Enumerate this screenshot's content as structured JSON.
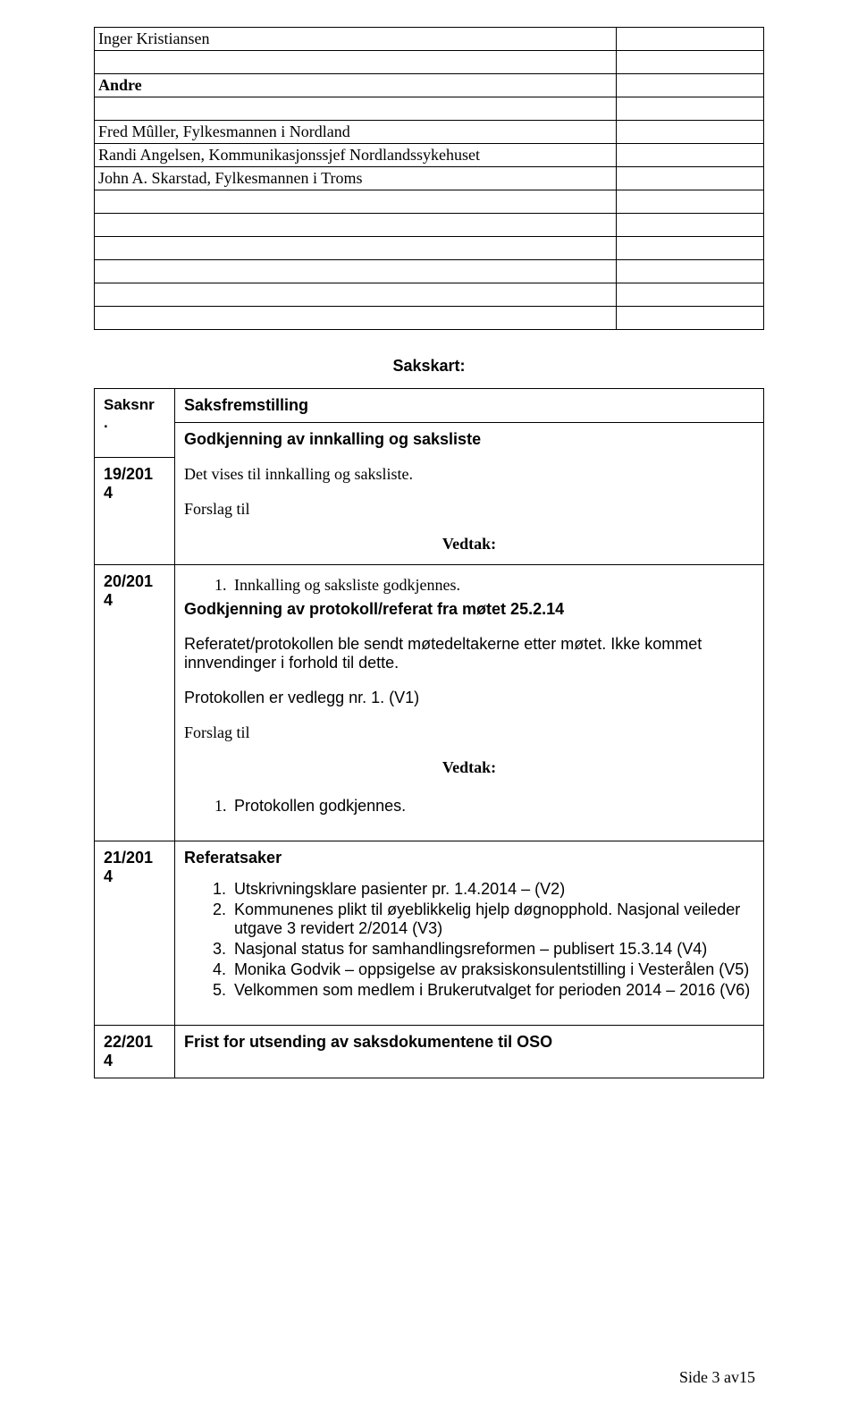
{
  "attendTable": {
    "rows": [
      {
        "name": "Inger Kristiansen",
        "bold": false
      },
      {
        "name": "",
        "bold": false
      },
      {
        "name": "Andre",
        "bold": true
      },
      {
        "name": "",
        "bold": false
      },
      {
        "name": "Fred Mûller, Fylkesmannen i Nordland",
        "bold": false
      },
      {
        "name": "Randi Angelsen, Kommunikasjonssjef Nordlandssykehuset",
        "bold": false
      },
      {
        "name": "John A. Skarstad, Fylkesmannen i Troms",
        "bold": false
      },
      {
        "name": "",
        "bold": false
      },
      {
        "name": "",
        "bold": false
      },
      {
        "name": "",
        "bold": false
      },
      {
        "name": "",
        "bold": false
      },
      {
        "name": "",
        "bold": false
      },
      {
        "name": "",
        "bold": false
      }
    ]
  },
  "sakskartLabel": "Sakskart:",
  "saksHeader": {
    "col1": "Saksnr.",
    "col2": "Saksfremstilling"
  },
  "row19": {
    "num1": "19/201",
    "num2": "4",
    "title": "Godkjenning av innkalling og saksliste",
    "line1": "Det vises til innkalling og saksliste.",
    "line2": "Forslag til",
    "vedtak": "Vedtak:"
  },
  "row20": {
    "num1": "20/201",
    "num2": "4",
    "listTop": "Innkalling og saksliste godkjennes.",
    "title": "Godkjenning av protokoll/referat fra møtet 25.2.14",
    "line1": "Referatet/protokollen ble sendt møtedeltakerne etter møtet. Ikke kommet innvendinger i forhold til dette.",
    "line2": "Protokollen er vedlegg nr. 1. (V1)",
    "line3": "Forslag til",
    "vedtak": "Vedtak:",
    "listBottom": "Protokollen godkjennes."
  },
  "row21": {
    "num1": "21/201",
    "num2": "4",
    "title": "Referatsaker",
    "items": [
      "Utskrivningsklare pasienter pr. 1.4.2014 – (V2)",
      "Kommunenes plikt til øyeblikkelig hjelp døgnopphold. Nasjonal veileder utgave 3 revidert 2/2014 (V3)",
      "Nasjonal status for samhandlingsreformen – publisert 15.3.14 (V4)",
      "Monika Godvik – oppsigelse av praksiskonsulentstilling i Vesterålen (V5)",
      "Velkommen som medlem i Brukerutvalget for perioden 2014 – 2016 (V6)"
    ]
  },
  "row22": {
    "num1": "22/201",
    "num2": "4",
    "title": "Frist for utsending av saksdokumentene til OSO"
  },
  "footer": "Side 3 av15"
}
